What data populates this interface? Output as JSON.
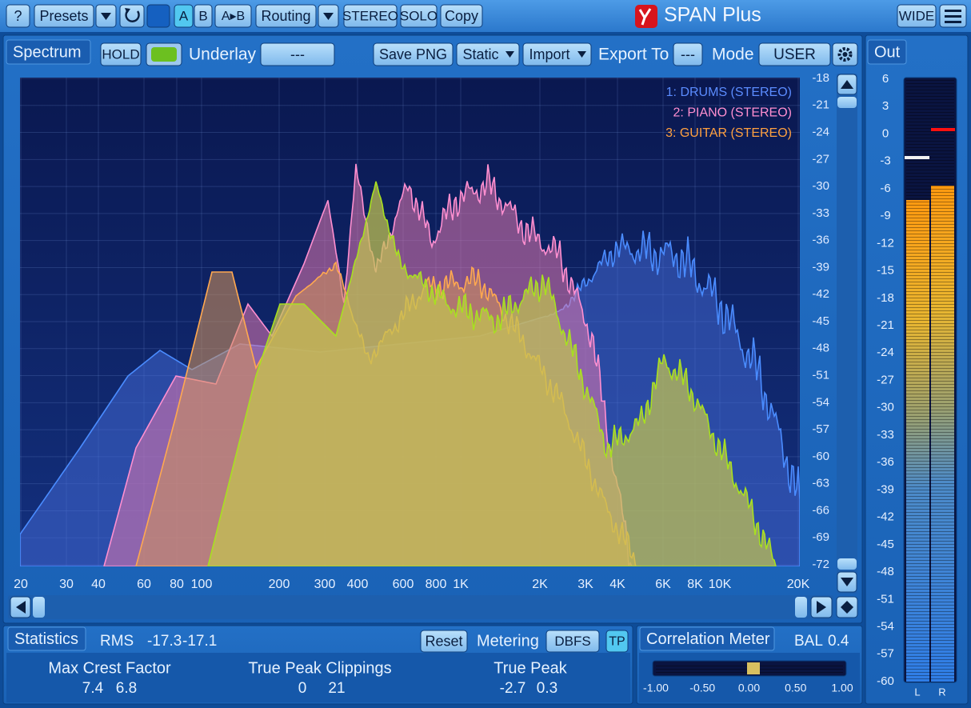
{
  "toolbar": {
    "help": "?",
    "presets": "Presets",
    "a": "A",
    "b": "B",
    "ab": "A▸B",
    "routing": "Routing",
    "stereo": "STEREO",
    "solo": "SOLO",
    "copy": "Copy",
    "title": "SPAN Plus",
    "wide": "WIDE"
  },
  "spectrum": {
    "tab": "Spectrum",
    "hold": "HOLD",
    "underlay_label": "Underlay",
    "underlay_value": "---",
    "save_png": "Save PNG",
    "static": "Static",
    "import": "Import",
    "export_label": "Export To",
    "export_value": "---",
    "mode_label": "Mode",
    "mode_value": "USER",
    "legend": [
      "1: DRUMS (STEREO)",
      "2: PIANO (STEREO)",
      "3: GUITAR (STEREO)"
    ],
    "db_ticks": [
      -18,
      -21,
      -24,
      -27,
      -30,
      -33,
      -36,
      -39,
      -42,
      -45,
      -48,
      -51,
      -54,
      -57,
      -60,
      -63,
      -66,
      -69,
      -72
    ],
    "freq_ticks": [
      "20",
      "30",
      "40",
      "60",
      "80",
      "100",
      "200",
      "300",
      "400",
      "600",
      "800",
      "1K",
      "2K",
      "3K",
      "4K",
      "6K",
      "8K",
      "10K",
      "20K"
    ]
  },
  "output": {
    "tab": "Out",
    "ticks": [
      6,
      3,
      0,
      -3,
      -6,
      -9,
      -12,
      -15,
      -18,
      -21,
      -24,
      -27,
      -30,
      -33,
      -36,
      -39,
      -42,
      -45,
      -48,
      -51,
      -54,
      -57,
      -60
    ],
    "channels": [
      "L",
      "R"
    ]
  },
  "statistics": {
    "tab": "Statistics",
    "rms_label": "RMS",
    "rms": [
      -17.3,
      -17.1
    ],
    "reset": "Reset",
    "metering_label": "Metering",
    "metering_value": "DBFS",
    "tp": "TP",
    "crest_label": "Max Crest Factor",
    "crest": [
      7.4,
      6.8
    ],
    "clip_label": "True Peak Clippings",
    "clips": [
      0,
      21
    ],
    "peak_label": "True Peak",
    "peak": [
      -2.7,
      0.3
    ]
  },
  "correlation": {
    "tab": "Correlation Meter",
    "bal_label": "BAL",
    "bal": 0.4,
    "ticks": [
      "-1.00",
      "-0.50",
      "0.00",
      "0.50",
      "1.00"
    ]
  }
}
